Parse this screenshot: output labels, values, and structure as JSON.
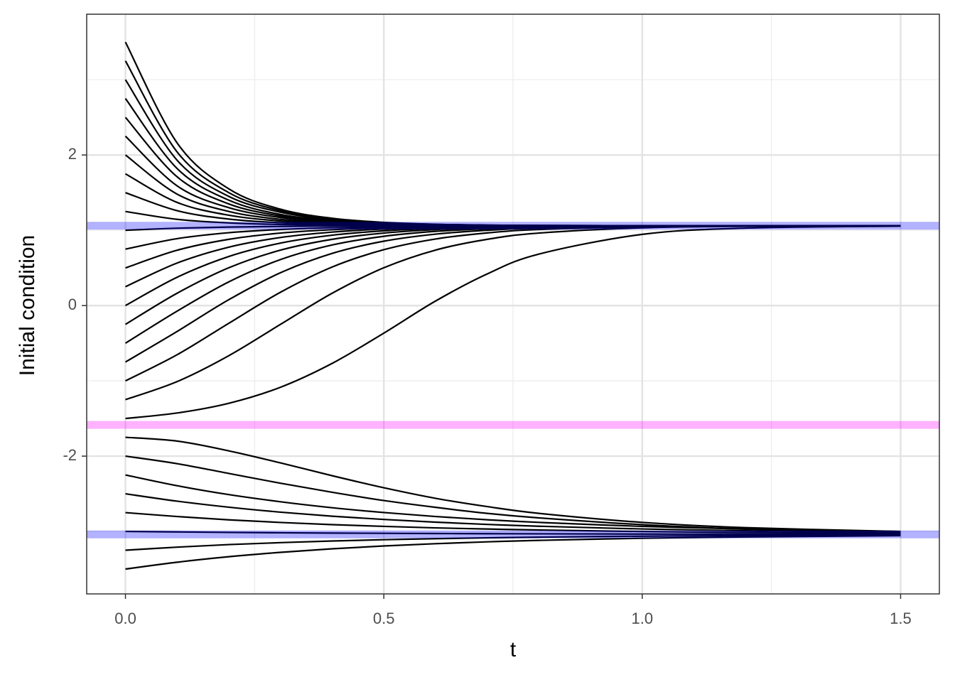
{
  "chart_data": {
    "type": "line",
    "xlabel": "t",
    "ylabel": "Initial condition",
    "xlim": [
      -0.075,
      1.575
    ],
    "ylim": [
      -3.83,
      3.87
    ],
    "xticks": [
      {
        "value": 0,
        "label": "0.0"
      },
      0.5,
      {
        "value": 1,
        "label": "1.0"
      },
      1.5
    ],
    "yticks": [
      -2,
      0,
      2
    ],
    "xminor": [
      0.25,
      0.75,
      1.25
    ],
    "yminor": [
      -3,
      -1,
      1,
      3
    ],
    "grid": true,
    "x": [
      0,
      0.1,
      0.2,
      0.3,
      0.4,
      0.5,
      0.6,
      0.7,
      0.8,
      1.0,
      1.2,
      1.5
    ],
    "hlines": [
      {
        "value": 1.06,
        "color": "#0000ff",
        "alpha": 0.3
      },
      {
        "value": -1.585,
        "color": "#ff00ff",
        "alpha": 0.3
      },
      {
        "value": -3.04,
        "color": "#0000ff",
        "alpha": 0.3
      }
    ],
    "series": [
      {
        "color": "#000000",
        "values": [
          3.5,
          2.16,
          1.55,
          1.28,
          1.16,
          1.105,
          1.08,
          1.069,
          1.064,
          1.061,
          1.06,
          1.06
        ]
      },
      {
        "color": "#000000",
        "values": [
          3.25,
          2.04,
          1.5,
          1.26,
          1.15,
          1.1,
          1.078,
          1.068,
          1.064,
          1.061,
          1.06,
          1.06
        ]
      },
      {
        "color": "#000000",
        "values": [
          3.0,
          1.93,
          1.45,
          1.24,
          1.14,
          1.095,
          1.076,
          1.067,
          1.063,
          1.061,
          1.06,
          1.06
        ]
      },
      {
        "color": "#000000",
        "values": [
          2.75,
          1.82,
          1.4,
          1.21,
          1.13,
          1.091,
          1.074,
          1.066,
          1.063,
          1.06,
          1.06,
          1.06
        ]
      },
      {
        "color": "#000000",
        "values": [
          2.5,
          1.71,
          1.35,
          1.19,
          1.12,
          1.086,
          1.072,
          1.065,
          1.062,
          1.06,
          1.06,
          1.06
        ]
      },
      {
        "color": "#000000",
        "values": [
          2.25,
          1.59,
          1.3,
          1.17,
          1.11,
          1.082,
          1.07,
          1.064,
          1.062,
          1.06,
          1.06,
          1.06
        ]
      },
      {
        "color": "#000000",
        "values": [
          2.0,
          1.48,
          1.25,
          1.145,
          1.098,
          1.077,
          1.068,
          1.063,
          1.062,
          1.06,
          1.06,
          1.06
        ]
      },
      {
        "color": "#000000",
        "values": [
          1.75,
          1.37,
          1.2,
          1.123,
          1.088,
          1.073,
          1.066,
          1.063,
          1.061,
          1.06,
          1.06,
          1.06
        ]
      },
      {
        "color": "#000000",
        "values": [
          1.5,
          1.26,
          1.149,
          1.1,
          1.078,
          1.068,
          1.064,
          1.062,
          1.061,
          1.06,
          1.06,
          1.06
        ]
      },
      {
        "color": "#000000",
        "values": [
          1.25,
          1.145,
          1.098,
          1.077,
          1.068,
          1.063,
          1.062,
          1.061,
          1.06,
          1.06,
          1.06,
          1.06
        ]
      },
      {
        "color": "#000000",
        "values": [
          1.0,
          1.028,
          1.043,
          1.051,
          1.056,
          1.058,
          1.059,
          1.06,
          1.06,
          1.06,
          1.06,
          1.06
        ]
      },
      {
        "color": "#000000",
        "values": [
          0.75,
          0.889,
          0.968,
          1.011,
          1.034,
          1.046,
          1.053,
          1.056,
          1.058,
          1.059,
          1.06,
          1.06
        ]
      },
      {
        "color": "#000000",
        "values": [
          0.5,
          0.735,
          0.88,
          0.963,
          1.008,
          1.033,
          1.046,
          1.053,
          1.056,
          1.059,
          1.06,
          1.06
        ]
      },
      {
        "color": "#000000",
        "values": [
          0.25,
          0.565,
          0.776,
          0.904,
          0.976,
          1.016,
          1.037,
          1.048,
          1.054,
          1.058,
          1.06,
          1.06
        ]
      },
      {
        "color": "#000000",
        "values": [
          0,
          0.376,
          0.652,
          0.83,
          0.935,
          0.993,
          1.025,
          1.041,
          1.05,
          1.057,
          1.059,
          1.06
        ]
      },
      {
        "color": "#000000",
        "values": [
          -0.25,
          0.164,
          0.502,
          0.736,
          0.88,
          0.963,
          1.009,
          1.033,
          1.046,
          1.056,
          1.059,
          1.06
        ]
      },
      {
        "color": "#000000",
        "values": [
          -0.5,
          -0.074,
          0.315,
          0.611,
          0.805,
          0.92,
          0.986,
          1.02,
          1.039,
          1.054,
          1.058,
          1.06
        ]
      },
      {
        "color": "#000000",
        "values": [
          -0.75,
          -0.344,
          0.078,
          0.436,
          0.693,
          0.855,
          0.949,
          1.0,
          1.029,
          1.051,
          1.058,
          1.06
        ]
      },
      {
        "color": "#000000",
        "values": [
          -1.0,
          -0.653,
          -0.235,
          0.177,
          0.512,
          0.742,
          0.884,
          0.965,
          1.01,
          1.046,
          1.056,
          1.06
        ]
      },
      {
        "color": "#000000",
        "values": [
          -1.25,
          -1.01,
          -0.666,
          -0.25,
          0.164,
          0.502,
          0.737,
          0.88,
          0.963,
          1.033,
          1.053,
          1.059
        ]
      },
      {
        "color": "#000000",
        "values": [
          -1.5,
          -1.427,
          -1.298,
          -1.085,
          -0.768,
          -0.366,
          0.06,
          0.42,
          0.684,
          0.946,
          1.029,
          1.055
        ]
      },
      {
        "color": "#000000",
        "values": [
          -1.75,
          -1.8,
          -1.93,
          -2.09,
          -2.26,
          -2.42,
          -2.56,
          -2.67,
          -2.76,
          -2.88,
          -2.95,
          -3.0
        ]
      },
      {
        "color": "#000000",
        "values": [
          -2.0,
          -2.1,
          -2.23,
          -2.36,
          -2.48,
          -2.59,
          -2.68,
          -2.76,
          -2.82,
          -2.91,
          -2.97,
          -3.01
        ]
      },
      {
        "color": "#000000",
        "values": [
          -2.25,
          -2.393,
          -2.511,
          -2.606,
          -2.685,
          -2.749,
          -2.802,
          -2.845,
          -2.88,
          -2.933,
          -2.968,
          -3.0
        ]
      },
      {
        "color": "#000000",
        "values": [
          -2.5,
          -2.598,
          -2.678,
          -2.744,
          -2.798,
          -2.841,
          -2.877,
          -2.907,
          -2.931,
          -2.967,
          -2.991,
          -3.013
        ]
      },
      {
        "color": "#000000",
        "values": [
          -2.75,
          -2.802,
          -2.846,
          -2.881,
          -2.91,
          -2.933,
          -2.953,
          -2.968,
          -2.981,
          -3.001,
          -3.014,
          -3.026
        ]
      },
      {
        "color": "#000000",
        "values": [
          -3.0,
          -3.007,
          -3.013,
          -3.018,
          -3.022,
          -3.025,
          -3.028,
          -3.03,
          -3.032,
          -3.035,
          -3.036,
          -3.038
        ]
      },
      {
        "color": "#000000",
        "values": [
          -3.25,
          -3.209,
          -3.175,
          -3.149,
          -3.127,
          -3.11,
          -3.096,
          -3.085,
          -3.076,
          -3.063,
          -3.055,
          -3.048
        ]
      },
      {
        "color": "#000000",
        "values": [
          -3.5,
          -3.409,
          -3.336,
          -3.278,
          -3.231,
          -3.193,
          -3.163,
          -3.138,
          -3.119,
          -3.091,
          -3.073,
          -3.057
        ]
      }
    ]
  }
}
